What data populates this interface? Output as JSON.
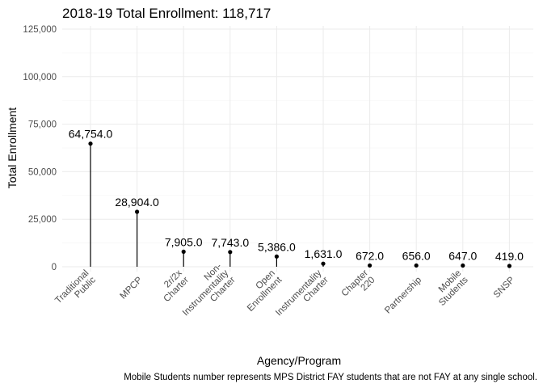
{
  "chart_data": {
    "type": "lollipop",
    "title": "2018-19 Total Enrollment: 118,717",
    "xlabel": "Agency/Program",
    "ylabel": "Total Enrollment",
    "caption": "Mobile Students number represents MPS District FAY students that are not FAY at any single school.",
    "categories": [
      [
        "Traditional",
        "Public"
      ],
      [
        "MPCP"
      ],
      [
        "2r/2x",
        "Charter"
      ],
      [
        "Non-",
        "Instrumentality",
        "Charter"
      ],
      [
        "Open",
        "Enrollment"
      ],
      [
        "Instrumentality",
        "Charter"
      ],
      [
        "Chapter",
        "220"
      ],
      [
        "Partnership"
      ],
      [
        "Mobile",
        "Students"
      ],
      [
        "SNSP"
      ]
    ],
    "values": [
      64754,
      28904,
      7905,
      7743,
      5386,
      1631,
      672,
      656,
      647,
      419
    ],
    "value_labels": [
      "64,754.0",
      "28,904.0",
      "7,905.0",
      "7,743.0",
      "5,386.0",
      "1,631.0",
      "672.0",
      "656.0",
      "647.0",
      "419.0"
    ],
    "yticks": [
      0,
      25000,
      50000,
      75000,
      100000,
      125000
    ],
    "ytick_labels": [
      "0",
      "25,000",
      "50,000",
      "75,000",
      "100,000",
      "125,000"
    ],
    "ylim": [
      0,
      125000
    ],
    "grid": true,
    "colors": {
      "grid": "#ebebeb",
      "stem": "#000000",
      "point": "#000000"
    }
  }
}
